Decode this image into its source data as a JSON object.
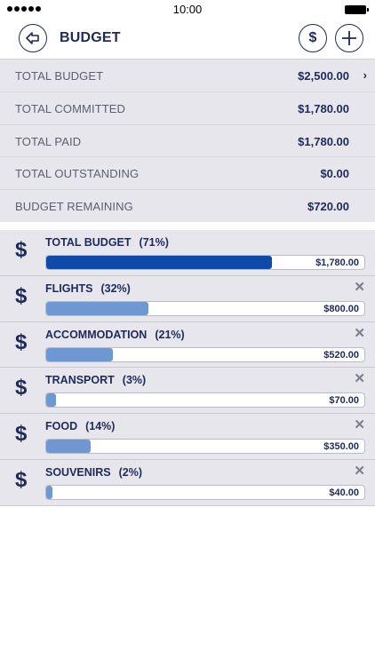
{
  "status_bar": {
    "time": "10:00"
  },
  "header": {
    "title": "BUDGET"
  },
  "summary": [
    {
      "label": "TOTAL BUDGET",
      "value": "$2,500.00",
      "chevron": "›"
    },
    {
      "label": "TOTAL COMMITTED",
      "value": "$1,780.00"
    },
    {
      "label": "TOTAL PAID",
      "value": "$1,780.00"
    },
    {
      "label": "TOTAL OUTSTANDING",
      "value": "$0.00"
    },
    {
      "label": "BUDGET REMAINING",
      "value": "$720.00"
    }
  ],
  "items": [
    {
      "label": "TOTAL BUDGET",
      "pct": "(71%)",
      "amount": "$1,780.00",
      "fill": 0.71,
      "primary": true,
      "removable": false
    },
    {
      "label": "FLIGHTS",
      "pct": "(32%)",
      "amount": "$800.00",
      "fill": 0.32,
      "primary": false,
      "removable": true
    },
    {
      "label": "ACCOMMODATION",
      "pct": "(21%)",
      "amount": "$520.00",
      "fill": 0.21,
      "primary": false,
      "removable": true
    },
    {
      "label": "TRANSPORT",
      "pct": "(3%)",
      "amount": "$70.00",
      "fill": 0.03,
      "primary": false,
      "removable": true
    },
    {
      "label": "FOOD",
      "pct": "(14%)",
      "amount": "$350.00",
      "fill": 0.14,
      "primary": false,
      "removable": true
    },
    {
      "label": "SOUVENIRS",
      "pct": "(2%)",
      "amount": "$40.00",
      "fill": 0.02,
      "primary": false,
      "removable": true
    }
  ],
  "icons": {
    "dollar": "$",
    "remove": "✕",
    "back": "back-arrow-icon",
    "add": "plus-icon"
  },
  "colors": {
    "navy": "#1e2a5a",
    "primary_fill": "#0f4aa8",
    "secondary_fill": "#6f97d2",
    "row_bg": "#e6e6ec"
  }
}
